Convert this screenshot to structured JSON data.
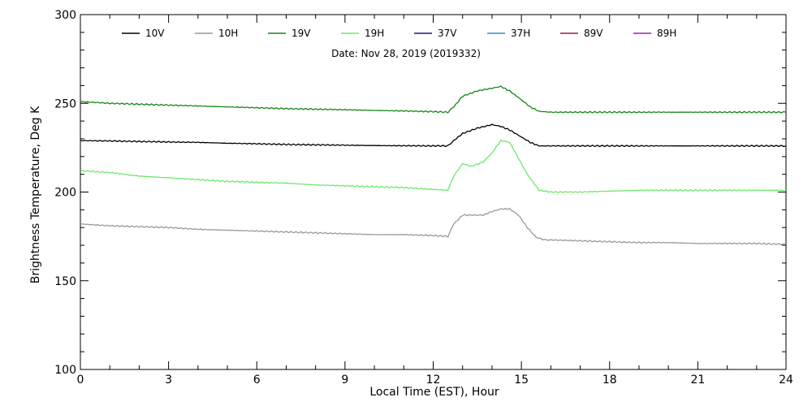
{
  "chart_data": {
    "type": "line",
    "title": "",
    "annotation": "Date: Nov 28, 2019 (2019332)",
    "xlabel": "Local Time (EST), Hour",
    "ylabel": "Brightness Temperature, Deg K",
    "xlim": [
      0,
      24
    ],
    "ylim": [
      100,
      300
    ],
    "xticks": [
      0,
      3,
      6,
      9,
      12,
      15,
      18,
      21,
      24
    ],
    "yticks": [
      100,
      150,
      200,
      250,
      300
    ],
    "grid": false,
    "legend_position": "top",
    "legend": [
      {
        "name": "10V",
        "color": "#000000"
      },
      {
        "name": "10H",
        "color": "#999999"
      },
      {
        "name": "19V",
        "color": "#168516"
      },
      {
        "name": "19H",
        "color": "#6ee86e"
      },
      {
        "name": "37V",
        "color": "#1b1b7a"
      },
      {
        "name": "37H",
        "color": "#2a90c8"
      },
      {
        "name": "89V",
        "color": "#a01b3c"
      },
      {
        "name": "89H",
        "color": "#8a2ba0"
      }
    ],
    "series": [
      {
        "name": "19V",
        "color": "#168516",
        "x": [
          0,
          1,
          2,
          3,
          4,
          5,
          6,
          7,
          8,
          9,
          10,
          11,
          12,
          12.5,
          12.7,
          13,
          13.5,
          14,
          14.3,
          14.6,
          15,
          15.3,
          15.6,
          16,
          17,
          18,
          19,
          20,
          21,
          22,
          23,
          24
        ],
        "y": [
          251,
          250,
          249.5,
          249,
          248.5,
          248,
          247.5,
          247,
          246.7,
          246.4,
          246,
          245.7,
          245.3,
          245,
          248,
          254,
          257,
          258.5,
          259.5,
          257,
          252,
          248,
          245.5,
          245,
          245,
          245,
          245,
          245,
          245,
          245,
          245,
          245
        ]
      },
      {
        "name": "10V",
        "color": "#000000",
        "x": [
          0,
          1,
          2,
          3,
          4,
          5,
          6,
          7,
          8,
          9,
          10,
          11,
          12,
          12.5,
          12.7,
          13,
          13.5,
          14,
          14.3,
          14.6,
          15,
          15.3,
          15.6,
          16,
          17,
          18,
          19,
          20,
          21,
          22,
          23,
          24
        ],
        "y": [
          229,
          228.8,
          228.5,
          228.2,
          228,
          227.5,
          227.2,
          226.8,
          226.6,
          226.4,
          226.2,
          226.1,
          226,
          226,
          229,
          233,
          236,
          238,
          237,
          235,
          231,
          228,
          226,
          226,
          226,
          226,
          226,
          226,
          226,
          226,
          226,
          226
        ]
      },
      {
        "name": "19H",
        "color": "#6ee86e",
        "x": [
          0,
          1,
          2,
          3,
          4,
          5,
          6,
          7,
          8,
          9,
          10,
          11,
          12,
          12.5,
          12.7,
          13,
          13.3,
          13.7,
          14,
          14.3,
          14.6,
          14.9,
          15.2,
          15.6,
          16,
          17,
          18,
          19,
          20,
          21,
          22,
          23,
          24
        ],
        "y": [
          212,
          211,
          209,
          208,
          207,
          206,
          205.5,
          205,
          204,
          203.5,
          203,
          202.5,
          201.5,
          201,
          209,
          216,
          214.5,
          217,
          222,
          229,
          228,
          219,
          210,
          201,
          200,
          200,
          200.5,
          201,
          201,
          201,
          201,
          201,
          201
        ]
      },
      {
        "name": "10H",
        "color": "#999999",
        "x": [
          0,
          1,
          2,
          3,
          4,
          5,
          6,
          7,
          8,
          9,
          10,
          11,
          12,
          12.5,
          12.7,
          13,
          13.4,
          13.7,
          14,
          14.3,
          14.6,
          14.9,
          15.2,
          15.5,
          15.8,
          16,
          17,
          18,
          19,
          20,
          21,
          22,
          23,
          24
        ],
        "y": [
          182,
          181,
          180.5,
          180,
          179,
          178.5,
          178,
          177.5,
          177,
          176.5,
          176,
          176,
          175.5,
          175,
          182,
          187,
          187,
          187,
          189,
          190.5,
          190.5,
          187,
          180,
          174.5,
          173,
          173,
          172.5,
          172,
          171.5,
          171.5,
          171,
          171,
          171,
          170.5
        ]
      }
    ]
  }
}
